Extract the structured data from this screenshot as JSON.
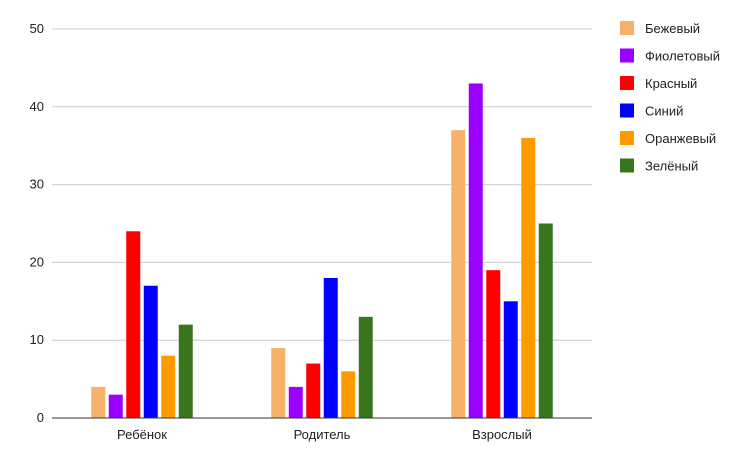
{
  "chart_data": {
    "type": "bar",
    "categories": [
      "Ребёнок",
      "Родитель",
      "Взрослый"
    ],
    "series": [
      {
        "name": "Бежевый",
        "color": "#F6B26B",
        "values": [
          4,
          9,
          37
        ]
      },
      {
        "name": "Фиолетовый",
        "color": "#9900FF",
        "values": [
          3,
          4,
          43
        ]
      },
      {
        "name": "Красный",
        "color": "#FF0000",
        "values": [
          24,
          7,
          19
        ]
      },
      {
        "name": "Синий",
        "color": "#0000FF",
        "values": [
          17,
          18,
          15
        ]
      },
      {
        "name": "Оранжевый",
        "color": "#FF9900",
        "values": [
          8,
          6,
          36
        ]
      },
      {
        "name": "Зелёный",
        "color": "#38761D",
        "values": [
          12,
          13,
          25
        ]
      }
    ],
    "ylim": [
      0,
      50
    ],
    "yticks": [
      0,
      10,
      20,
      30,
      40,
      50
    ],
    "grid": true,
    "legend_position": "right"
  }
}
